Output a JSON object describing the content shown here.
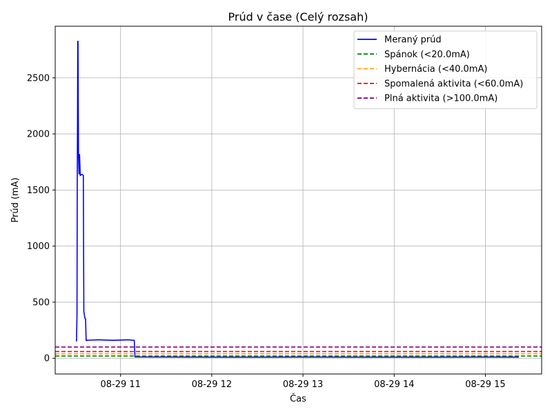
{
  "chart_data": {
    "type": "line",
    "title": "Prúd v čase (Celý rozsah)",
    "xlabel": "Čas",
    "ylabel": "Prúd (mA)",
    "x_axis_type": "time",
    "xlim": [
      "2025-08-29 10:17",
      "2025-08-29 15:37"
    ],
    "ylim": [
      -140,
      2960
    ],
    "xticks": [
      {
        "t": "2025-08-29 11:00",
        "label": "08-29 11"
      },
      {
        "t": "2025-08-29 12:00",
        "label": "08-29 12"
      },
      {
        "t": "2025-08-29 13:00",
        "label": "08-29 13"
      },
      {
        "t": "2025-08-29 14:00",
        "label": "08-29 14"
      },
      {
        "t": "2025-08-29 15:00",
        "label": "08-29 15"
      }
    ],
    "yticks": [
      {
        "v": 0,
        "label": "0"
      },
      {
        "v": 500,
        "label": "500"
      },
      {
        "v": 1000,
        "label": "1000"
      },
      {
        "v": 1500,
        "label": "1500"
      },
      {
        "v": 2000,
        "label": "2000"
      },
      {
        "v": 2500,
        "label": "2500"
      }
    ],
    "grid": true,
    "legend_position": "top-right",
    "series": [
      {
        "name": "Meraný prúd",
        "color": "#0000ff",
        "style": "solid",
        "points": [
          [
            "2025-08-29 10:31:00",
            150
          ],
          [
            "2025-08-29 10:31:20",
            380
          ],
          [
            "2025-08-29 10:31:30",
            1600
          ],
          [
            "2025-08-29 10:31:40",
            2060
          ],
          [
            "2025-08-29 10:31:50",
            2820
          ],
          [
            "2025-08-29 10:32:00",
            2830
          ],
          [
            "2025-08-29 10:32:10",
            2300
          ],
          [
            "2025-08-29 10:32:20",
            1800
          ],
          [
            "2025-08-29 10:32:40",
            1640
          ],
          [
            "2025-08-29 10:33:00",
            1820
          ],
          [
            "2025-08-29 10:33:30",
            1630
          ],
          [
            "2025-08-29 10:34:30",
            1640
          ],
          [
            "2025-08-29 10:35:30",
            1630
          ],
          [
            "2025-08-29 10:35:50",
            420
          ],
          [
            "2025-08-29 10:36:10",
            390
          ],
          [
            "2025-08-29 10:36:30",
            360
          ],
          [
            "2025-08-29 10:37:00",
            350
          ],
          [
            "2025-08-29 10:37:20",
            160
          ],
          [
            "2025-08-29 10:45:00",
            165
          ],
          [
            "2025-08-29 10:55:00",
            160
          ],
          [
            "2025-08-29 11:05:00",
            165
          ],
          [
            "2025-08-29 11:09:00",
            160
          ],
          [
            "2025-08-29 11:09:30",
            12
          ],
          [
            "2025-08-29 12:00:00",
            10
          ],
          [
            "2025-08-29 13:00:00",
            11
          ],
          [
            "2025-08-29 14:00:00",
            10
          ],
          [
            "2025-08-29 15:00:00",
            11
          ],
          [
            "2025-08-29 15:22:00",
            10
          ]
        ]
      },
      {
        "name": "Spánok (<20.0mA)",
        "color": "#008000",
        "style": "dashed",
        "value": 20
      },
      {
        "name": "Hybernácia (<40.0mA)",
        "color": "#ffa500",
        "style": "dashed",
        "value": 40
      },
      {
        "name": "Spomalená aktivita (<60.0mA)",
        "color": "#ff0000",
        "style": "dashed",
        "value": 60
      },
      {
        "name": "Plná aktivita (>100.0mA)",
        "color": "#800080",
        "style": "dashed",
        "value": 100
      }
    ]
  }
}
